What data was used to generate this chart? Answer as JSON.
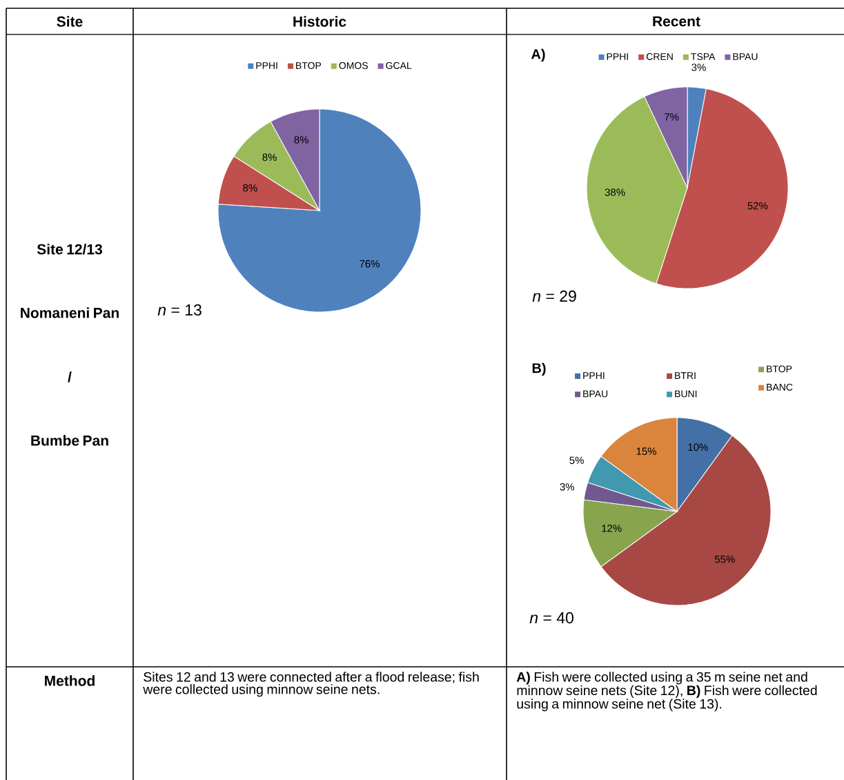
{
  "chart_data": [
    {
      "type": "other",
      "annotations": [
        "Site",
        "Historic",
        "Recent",
        "Site 12/13",
        "Nomaneni Pan",
        "/",
        "Bumbe Pan",
        "Method",
        "Sites 12 and 13 were connected after a flood release; fish were collected using minnow seine nets.",
        "**A)** Fish were collected using a 35 m seine net and minnow seine nets (Site 12), **B)** Fish were collected using a minnow seine net (Site 13)."
      ]
    },
    {
      "type": "pie",
      "categories": [
        "PPHI",
        "BTOP",
        "OMOS",
        "GCAL"
      ],
      "values": [
        76,
        8,
        8,
        8
      ],
      "colors": [
        "#4f81bd",
        "#c0504d",
        "#9bbb59",
        "#8064a2"
      ],
      "value_labels": [
        "76%",
        "8%",
        "8%",
        "8%"
      ],
      "legend": "top",
      "annotations": [
        "*n* = 13"
      ]
    },
    {
      "type": "pie",
      "title": "A)",
      "categories": [
        "PPHI",
        "CREN",
        "TSPA",
        "BPAU"
      ],
      "values": [
        3,
        52,
        38,
        7
      ],
      "colors": [
        "#4f81bd",
        "#c0504d",
        "#9bbb59",
        "#8064a2"
      ],
      "value_labels": [
        "3%",
        "52%",
        "38%",
        "7%"
      ],
      "legend": "top",
      "annotations": [
        "*n* = 29"
      ]
    },
    {
      "type": "pie",
      "title": "B)",
      "categories": [
        "PPHI",
        "BTRI",
        "BTOP",
        "BPAU",
        "BUNI",
        "BANC"
      ],
      "values": [
        10,
        55,
        12,
        3,
        5,
        15
      ],
      "colors": [
        "#4470a8",
        "#a84845",
        "#88a54e",
        "#71598f",
        "#4198af",
        "#db843d"
      ],
      "value_labels": [
        "10%",
        "55%",
        "12%",
        "3%",
        "5%",
        "15%"
      ],
      "legend": "top",
      "annotations": [
        "*n* = 40"
      ]
    }
  ]
}
